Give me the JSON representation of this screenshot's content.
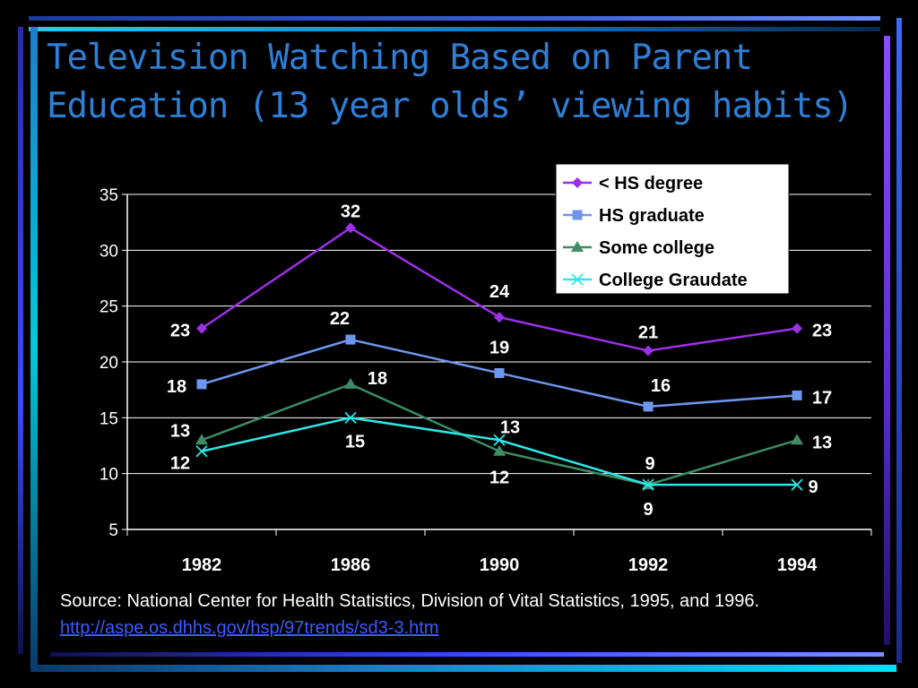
{
  "slide": {
    "title": "Television Watching Based on Parent Education (13 year olds’ viewing habits)",
    "source_text": "Source: National Center for Health Statistics, Division of Vital Statistics, 1995, and 1996.",
    "source_link": "http://aspe.os.dhhs.gov/hsp/97trends/sd3-3.htm"
  },
  "colors": {
    "background": "#000000",
    "title": "#2f7fd6",
    "accent_cyan": "#00c8d8",
    "accent_purple": "#7a3cf0",
    "accent_blue": "#4a6ee8"
  },
  "chart_data": {
    "type": "line",
    "categories": [
      "1982",
      "1986",
      "1990",
      "1992",
      "1994"
    ],
    "ylim": [
      5,
      35
    ],
    "yticks": [
      5,
      10,
      15,
      20,
      25,
      30,
      35
    ],
    "grid": true,
    "legend_position": "top-right",
    "series": [
      {
        "name": "< HS degree",
        "values": [
          23,
          32,
          24,
          21,
          23
        ],
        "color": "#9b30e8",
        "marker": "diamond"
      },
      {
        "name": "HS graduate",
        "values": [
          18,
          22,
          19,
          16,
          17
        ],
        "color": "#6f96ee",
        "marker": "square"
      },
      {
        "name": "Some college",
        "values": [
          13,
          18,
          12,
          9,
          13
        ],
        "color": "#3c8c64",
        "marker": "triangle"
      },
      {
        "name": "College Graudate",
        "values": [
          12,
          15,
          13,
          9,
          9
        ],
        "color": "#2ee6e6",
        "marker": "x"
      }
    ]
  }
}
